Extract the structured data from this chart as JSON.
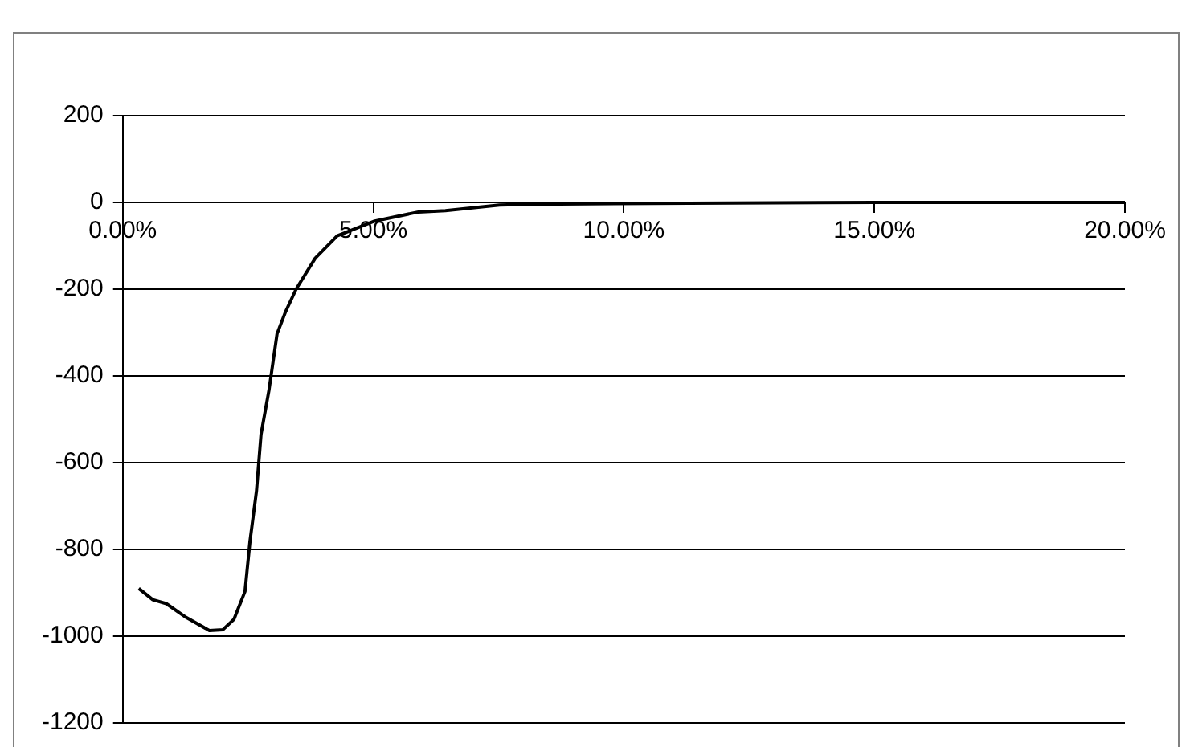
{
  "chart_data": {
    "type": "line",
    "x": [
      0.32,
      0.6,
      0.87,
      1.24,
      1.73,
      2.0,
      2.22,
      2.44,
      2.54,
      2.67,
      2.76,
      2.92,
      3.08,
      3.25,
      3.46,
      3.84,
      4.28,
      5.03,
      5.9,
      6.44,
      7.52,
      8.17,
      11.3,
      15,
      20
    ],
    "series": [
      {
        "color": "#000000",
        "values": [
          -890,
          -916,
          -925,
          -955,
          -987,
          -985,
          -961,
          -897,
          -781,
          -665,
          -535,
          -432,
          -303,
          -252,
          -200,
          -129,
          -77,
          -43,
          -22,
          -19,
          -6,
          -4,
          -2,
          0,
          0
        ]
      }
    ],
    "xlim": [
      0,
      20
    ],
    "xticks": [
      {
        "value": 0,
        "label": "0.00%"
      },
      {
        "value": 5,
        "label": "5.00%"
      },
      {
        "value": 10,
        "label": "10.00%"
      },
      {
        "value": 15,
        "label": "15.00%"
      },
      {
        "value": 20,
        "label": "20.00%"
      }
    ],
    "ylim": [
      -1200,
      200
    ],
    "yticks": [
      -1200,
      -1000,
      -800,
      -600,
      -400,
      -200,
      0,
      200
    ],
    "grid": "y",
    "legend": false,
    "marker": "none",
    "line_style": "solid"
  }
}
